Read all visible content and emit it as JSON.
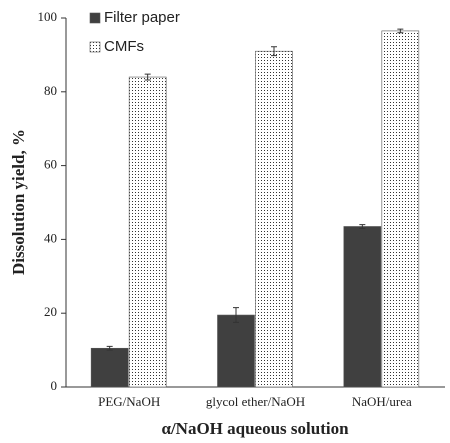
{
  "chart_data": {
    "type": "bar",
    "x_label": "α/NaOH aqueous solution",
    "y_label": "Dissolution  yield,  %",
    "categories": [
      "PEG/NaOH",
      "glycol ether/NaOH",
      "NaOH/urea"
    ],
    "series": [
      {
        "name": "Filter paper",
        "color": "#404040",
        "values": [
          10.5,
          19.5,
          43.5
        ],
        "errors": [
          0.5,
          2,
          0.5
        ]
      },
      {
        "name": "CMFs",
        "color": "#ffffff",
        "pattern": "dots",
        "values": [
          84,
          91,
          96.5
        ],
        "errors": [
          0.8,
          1.2,
          0.5
        ]
      }
    ],
    "ylim": [
      0,
      100
    ],
    "yticks": [
      0,
      20,
      40,
      60,
      80,
      100
    ],
    "legend": "upper left"
  }
}
